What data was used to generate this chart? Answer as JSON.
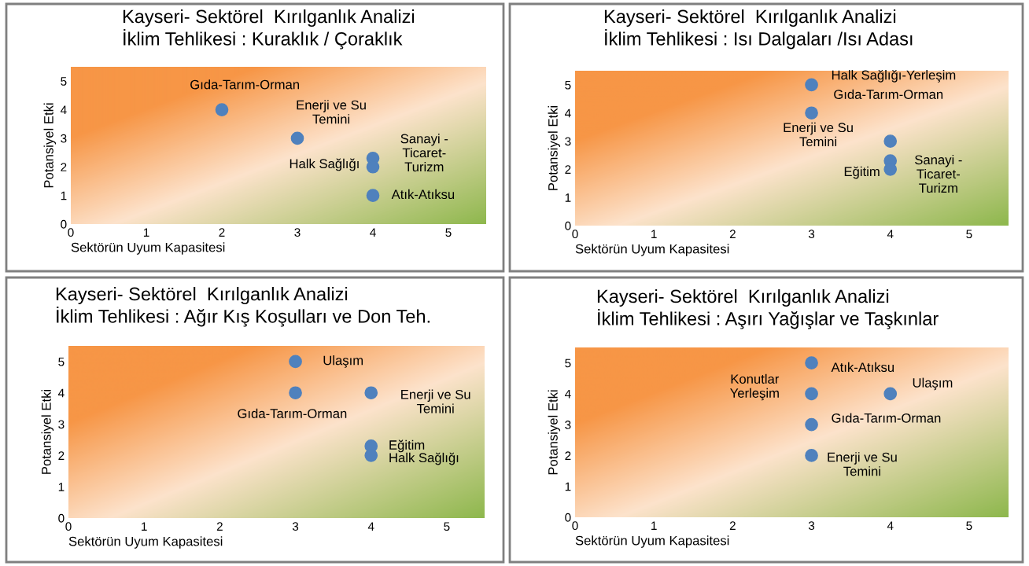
{
  "chart_data": [
    {
      "type": "scatter",
      "title": "Kayseri- Sektörel  Kırılganlık Analizi\nİklim Tehlikesi : Kuraklık / Çoraklık",
      "xlabel": "Sektörün Uyum Kapasitesi",
      "ylabel": "Potansiyel Etki",
      "marker": "circle",
      "series": [
        {
          "color": "#4f81bd",
          "x": [
            2,
            3,
            4,
            4,
            4
          ],
          "values": [
            4,
            3,
            2.3,
            2,
            1
          ]
        }
      ],
      "xlim": [
        0,
        5.5
      ],
      "ylim": [
        0,
        5.5
      ],
      "xticks": [
        0,
        1,
        2,
        3,
        4,
        5
      ],
      "yticks": [
        0,
        1,
        2,
        3,
        4,
        5
      ],
      "annotations": [
        {
          "text": "Gıda-Tarım-Orman",
          "x": 2,
          "y": 4
        },
        {
          "text": "Enerji ve Su\nTemini",
          "x": 3,
          "y": 3
        },
        {
          "text": "Sanayi -\nTicaret-\nTurizm",
          "x": 4,
          "y": 2.3
        },
        {
          "text": "Halk Sağlığı",
          "x": 4,
          "y": 2
        },
        {
          "text": "Atık-Atıksu",
          "x": 4,
          "y": 1
        }
      ]
    },
    {
      "type": "scatter",
      "title": "Kayseri- Sektörel  Kırılganlık Analizi\nİklim Tehlikesi : Isı Dalgaları /Isı Adası",
      "xlabel": "Sektörün Uyum Kapasitesi",
      "ylabel": "Potansiyel Etki",
      "marker": "circle",
      "series": [
        {
          "color": "#4f81bd",
          "x": [
            3,
            3,
            4,
            4,
            4
          ],
          "values": [
            5,
            4,
            3,
            2.3,
            2
          ]
        }
      ],
      "xlim": [
        0,
        5.5
      ],
      "ylim": [
        0,
        5.5
      ],
      "xticks": [
        0,
        1,
        2,
        3,
        4,
        5
      ],
      "yticks": [
        0,
        1,
        2,
        3,
        4,
        5
      ],
      "annotations": [
        {
          "text": "Halk Sağlığı-Yerleşim",
          "x": 3,
          "y": 5
        },
        {
          "text": "Gıda-Tarım-Orman",
          "x": 3,
          "y": 4
        },
        {
          "text": "Enerji ve Su\nTemini",
          "x": 4,
          "y": 3
        },
        {
          "text": "Sanayi -\nTicaret-\nTurizm",
          "x": 4,
          "y": 2.3
        },
        {
          "text": "Eğitim",
          "x": 4,
          "y": 2
        }
      ]
    },
    {
      "type": "scatter",
      "title": "Kayseri- Sektörel  Kırılganlık Analizi\nİklim Tehlikesi : Ağır Kış Koşulları ve Don Teh.",
      "xlabel": "Sektörün Uyum Kapasitesi",
      "ylabel": "Potansiyel Etki",
      "marker": "circle",
      "series": [
        {
          "color": "#4f81bd",
          "x": [
            3,
            3,
            4,
            4,
            4
          ],
          "values": [
            5,
            4,
            4,
            2.3,
            2
          ]
        }
      ],
      "xlim": [
        0,
        5.5
      ],
      "ylim": [
        0,
        5.5
      ],
      "xticks": [
        0,
        1,
        2,
        3,
        4,
        5
      ],
      "yticks": [
        0,
        1,
        2,
        3,
        4,
        5
      ],
      "annotations": [
        {
          "text": "Ulaşım",
          "x": 3,
          "y": 5
        },
        {
          "text": "Gıda-Tarım-Orman",
          "x": 3,
          "y": 4
        },
        {
          "text": "Enerji ve Su\nTemini",
          "x": 4,
          "y": 4
        },
        {
          "text": "Eğitim",
          "x": 4,
          "y": 2.3
        },
        {
          "text": "Halk Sağlığı",
          "x": 4,
          "y": 2
        }
      ]
    },
    {
      "type": "scatter",
      "title": "Kayseri- Sektörel  Kırılganlık Analizi\nİklim Tehlikesi : Aşırı Yağışlar ve Taşkınlar",
      "xlabel": "Sektörün Uyum Kapasitesi",
      "ylabel": "Potansiyel Etki",
      "marker": "circle",
      "series": [
        {
          "color": "#4f81bd",
          "x": [
            3,
            3,
            4,
            3,
            3
          ],
          "values": [
            5,
            4,
            4,
            3,
            2
          ]
        }
      ],
      "xlim": [
        0,
        5.5
      ],
      "ylim": [
        0,
        5.5
      ],
      "xticks": [
        0,
        1,
        2,
        3,
        4,
        5
      ],
      "yticks": [
        0,
        1,
        2,
        3,
        4,
        5
      ],
      "annotations": [
        {
          "text": "Atık-Atıksu",
          "x": 3,
          "y": 5
        },
        {
          "text": "Konutlar\nYerleşim",
          "x": 3,
          "y": 4
        },
        {
          "text": "Ulaşım",
          "x": 4,
          "y": 4
        },
        {
          "text": "Gıda-Tarım-Orman",
          "x": 3,
          "y": 3
        },
        {
          "text": "Enerji ve Su\nTemini",
          "x": 3,
          "y": 2
        }
      ]
    }
  ]
}
